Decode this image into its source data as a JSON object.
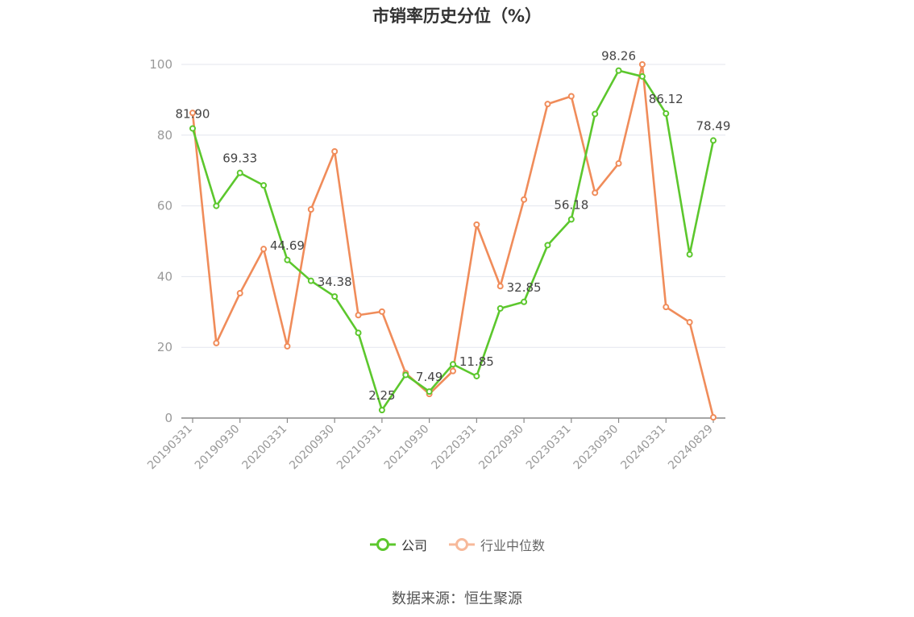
{
  "chart_data": {
    "type": "line",
    "title": "市销率历史分位（%）",
    "x_tick_labels": [
      "20190331",
      "20190930",
      "20200331",
      "20200930",
      "20210331",
      "20210930",
      "20220331",
      "20220930",
      "20230331",
      "20230930",
      "20240331",
      "20240829"
    ],
    "y_ticks": [
      0,
      20,
      40,
      60,
      80,
      100
    ],
    "ylim": [
      0,
      100
    ],
    "grid": true,
    "legend_position": "bottom",
    "points_count": 23,
    "series": [
      {
        "name": "公司",
        "color": "#5cc72d",
        "values": [
          81.9,
          60.0,
          69.33,
          65.8,
          44.69,
          38.8,
          34.38,
          24.1,
          2.25,
          12.2,
          7.49,
          15.2,
          11.85,
          31.0,
          32.85,
          48.9,
          56.18,
          86.0,
          98.26,
          96.6,
          86.12,
          46.3,
          78.49
        ],
        "labels": {
          "0": "81.90",
          "2": "69.33",
          "4": "44.69",
          "6": "34.38",
          "8": "2.25",
          "10": "7.49",
          "12": "11.85",
          "14": "32.85",
          "16": "56.18",
          "18": "98.26",
          "20": "86.12",
          "22": "78.49"
        }
      },
      {
        "name": "行业中位数",
        "color": "#f08c5a",
        "values": [
          86.3,
          21.2,
          35.3,
          47.8,
          20.3,
          59.0,
          75.4,
          29.1,
          30.1,
          12.7,
          6.8,
          13.3,
          54.7,
          37.3,
          61.8,
          88.8,
          91.0,
          63.7,
          72.0,
          100.0,
          31.4,
          27.1,
          0.2
        ]
      }
    ]
  },
  "legend": {
    "items": [
      {
        "label": "公司",
        "color": "#5cc72d"
      },
      {
        "label": "行业中位数",
        "color": "#f7b99a"
      }
    ]
  },
  "source": "数据来源：恒生聚源"
}
